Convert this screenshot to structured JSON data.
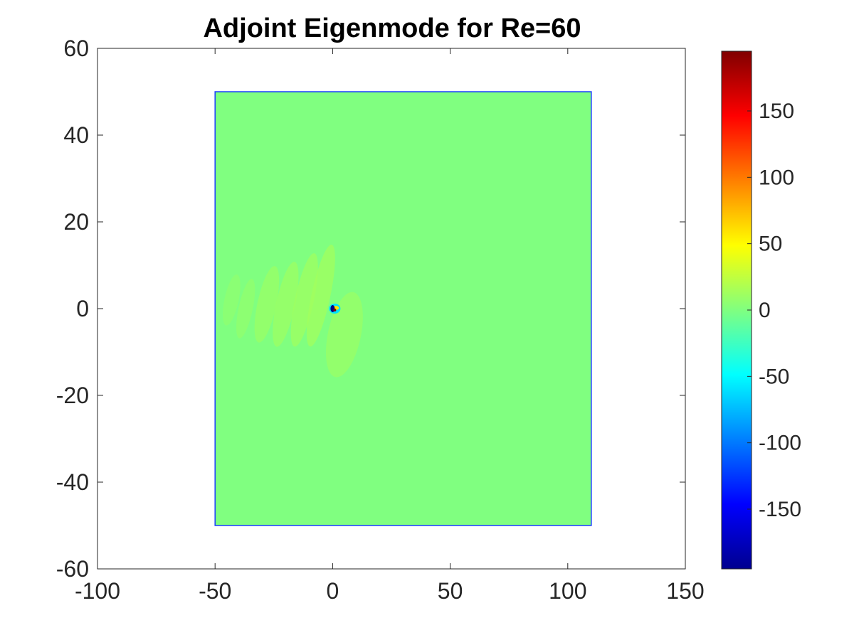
{
  "chart_data": {
    "type": "heatmap",
    "title": "Adjoint Eigenmode for Re=60",
    "xlabel": "",
    "ylabel": "",
    "xlim": [
      -100,
      150
    ],
    "ylim": [
      -60,
      60
    ],
    "xticks": [
      -100,
      -50,
      0,
      50,
      100,
      150
    ],
    "yticks": [
      -60,
      -40,
      -20,
      0,
      20,
      40,
      60
    ],
    "xtick_labels": [
      "-100",
      "-50",
      "0",
      "50",
      "100",
      "150"
    ],
    "ytick_labels": [
      "-60",
      "-40",
      "-20",
      "0",
      "20",
      "40",
      "60"
    ],
    "domain": {
      "x": [
        -50,
        110
      ],
      "y": [
        -50,
        50
      ]
    },
    "background_value": 0,
    "hotspot": {
      "x": 0,
      "y": 0,
      "min": -195,
      "max": 195
    },
    "wake_structures": [
      {
        "x": -43,
        "y": 2,
        "value": 5
      },
      {
        "x": -37,
        "y": 0,
        "value": 6
      },
      {
        "x": -28,
        "y": 1,
        "value": 8
      },
      {
        "x": -20,
        "y": 1,
        "value": 9
      },
      {
        "x": -12,
        "y": 2,
        "value": 10
      },
      {
        "x": -5,
        "y": 3,
        "value": 11
      },
      {
        "x": 5,
        "y": -6,
        "value": 8
      }
    ],
    "colorbar": {
      "colormap": "jet",
      "range": [
        -195,
        195
      ],
      "ticks": [
        -150,
        -100,
        -50,
        0,
        50,
        100,
        150
      ],
      "tick_labels": [
        "-150",
        "-100",
        "-50",
        "0",
        "50",
        "100",
        "150"
      ]
    },
    "grid": false,
    "legend": "none"
  },
  "colors": {
    "field_background": "#80ff80",
    "domain_edge": "#1a3cff",
    "axes": "#262626"
  }
}
